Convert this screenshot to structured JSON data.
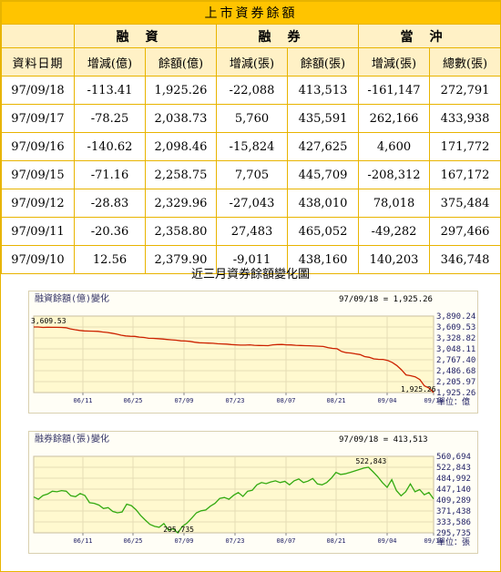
{
  "table": {
    "title": "上市資券餘額",
    "groups": [
      "融資",
      "融券",
      "當沖"
    ],
    "date_header": "資料日期",
    "columns": [
      "增減(億)",
      "餘額(億)",
      "增減(張)",
      "餘額(張)",
      "增減(張)",
      "總數(張)"
    ],
    "rows": [
      [
        "97/09/18",
        "-113.41",
        "1,925.26",
        "-22,088",
        "413,513",
        "-161,147",
        "272,791"
      ],
      [
        "97/09/17",
        "-78.25",
        "2,038.73",
        "5,760",
        "435,591",
        "262,166",
        "433,938"
      ],
      [
        "97/09/16",
        "-140.62",
        "2,098.46",
        "-15,824",
        "427,625",
        "4,600",
        "171,772"
      ],
      [
        "97/09/15",
        "-71.16",
        "2,258.75",
        "7,705",
        "445,709",
        "-208,312",
        "167,172"
      ],
      [
        "97/09/12",
        "-28.83",
        "2,329.96",
        "-27,043",
        "438,010",
        "78,018",
        "375,484"
      ],
      [
        "97/09/11",
        "-20.36",
        "2,358.80",
        "27,483",
        "465,052",
        "-49,282",
        "297,466"
      ],
      [
        "97/09/10",
        "12.56",
        "2,379.90",
        "-9,011",
        "438,160",
        "140,203",
        "346,748"
      ]
    ]
  },
  "chart_section_title": "近三月資券餘額變化圖",
  "chart_data": [
    {
      "type": "line",
      "title": "融資餘額(億)變化",
      "readout": "97/09/18 = 1,925.26",
      "x_ticks": [
        "06/11",
        "06/25",
        "07/09",
        "07/23",
        "08/07",
        "08/21",
        "09/04",
        "09/18"
      ],
      "y_ticks": [
        "3,890.24",
        "3,609.53",
        "3,328.82",
        "3,048.11",
        "2,767.40",
        "2,486.68",
        "2,205.97",
        "1,925.26"
      ],
      "ylim": [
        1925.26,
        3890.24
      ],
      "unit_label": "單位：億",
      "annotations": [
        "3,609.53",
        "1,925.26"
      ],
      "color": "#cc2200",
      "values": [
        3609.53,
        3610,
        3598,
        3603,
        3601,
        3600,
        3598,
        3590,
        3560,
        3540,
        3520,
        3510,
        3505,
        3502,
        3498,
        3480,
        3470,
        3450,
        3430,
        3400,
        3380,
        3370,
        3368,
        3350,
        3340,
        3320,
        3318,
        3310,
        3300,
        3290,
        3280,
        3270,
        3255,
        3250,
        3240,
        3220,
        3205,
        3200,
        3195,
        3190,
        3180,
        3175,
        3170,
        3158,
        3150,
        3143,
        3145,
        3150,
        3140,
        3135,
        3132,
        3130,
        3150,
        3158,
        3160,
        3150,
        3148,
        3140,
        3135,
        3130,
        3128,
        3120,
        3115,
        3110,
        3080,
        3060,
        3050,
        2980,
        2950,
        2940,
        2920,
        2900,
        2850,
        2830,
        2790,
        2780,
        2776,
        2750,
        2700,
        2620,
        2510,
        2379.9,
        2358.8,
        2329.96,
        2258.75,
        2098.46,
        2038.73,
        1925.26
      ]
    },
    {
      "type": "line",
      "title": "融券餘額(張)變化",
      "readout": "97/09/18 = 413,513",
      "x_ticks": [
        "06/11",
        "06/25",
        "07/09",
        "07/23",
        "08/07",
        "08/21",
        "09/04",
        "09/18"
      ],
      "y_ticks": [
        "560,694",
        "522,843",
        "484,992",
        "447,140",
        "409,289",
        "371,438",
        "333,586",
        "295,735"
      ],
      "ylim": [
        295735,
        560694
      ],
      "unit_label": "單位：張",
      "annotations": [
        "522,843",
        "295,735"
      ],
      "color": "#33aa11",
      "values": [
        420000,
        412000,
        425000,
        430000,
        440000,
        438000,
        442000,
        440000,
        424000,
        421000,
        432000,
        425000,
        400000,
        398000,
        392000,
        380000,
        383000,
        370000,
        365000,
        368000,
        395000,
        390000,
        376000,
        356000,
        340000,
        325000,
        318000,
        315000,
        328000,
        305000,
        310000,
        295735,
        318000,
        330000,
        347000,
        365000,
        372000,
        375000,
        388000,
        398000,
        415000,
        418000,
        412000,
        426000,
        435000,
        422000,
        440000,
        443000,
        462000,
        470000,
        466000,
        472000,
        476000,
        470000,
        474000,
        462000,
        476000,
        482000,
        470000,
        475000,
        484000,
        465000,
        462000,
        470000,
        485000,
        505000,
        498000,
        500000,
        505000,
        510000,
        515000,
        520000,
        522843,
        507000,
        490000,
        470000,
        453000,
        480000,
        442000,
        424000,
        438160,
        465052,
        438010,
        445709,
        427625,
        435591,
        413513
      ]
    }
  ]
}
